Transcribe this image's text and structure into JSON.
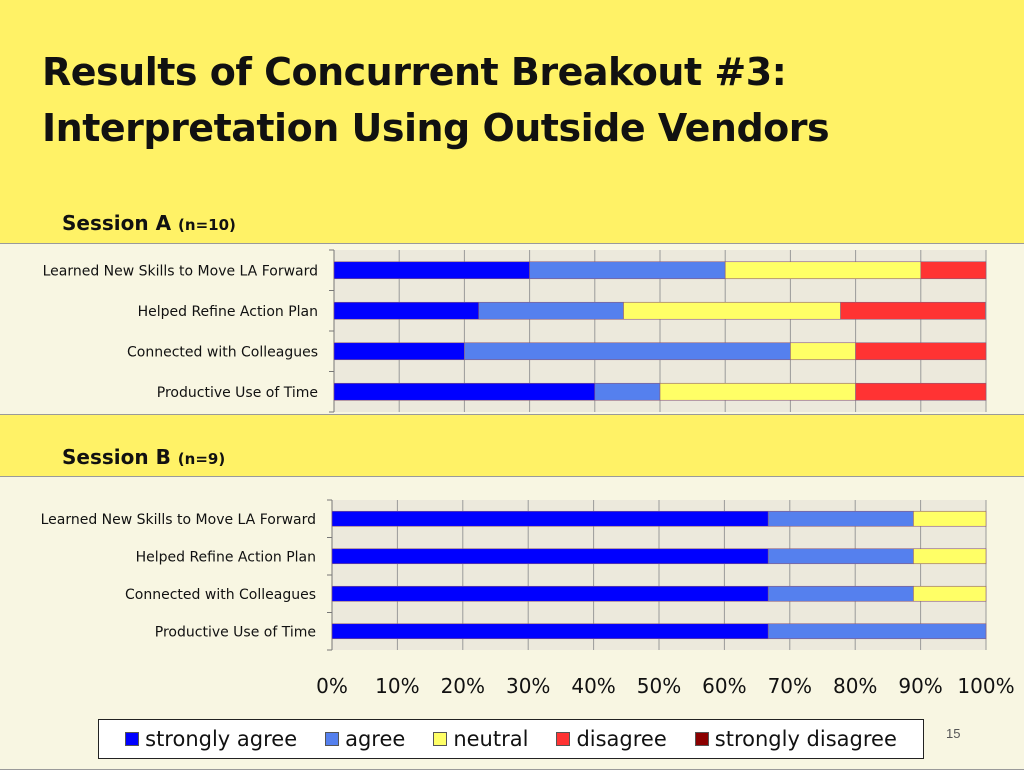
{
  "slide": {
    "title_line1": "Results of Concurrent Breakout #3:",
    "title_line2": "Interpretation Using Outside Vendors",
    "page_number": "15"
  },
  "colors": {
    "strongly_agree": "#0000FF",
    "agree": "#5580EE",
    "neutral": "#FFFF66",
    "disagree": "#FF3333",
    "strongly_disagree": "#8B0000",
    "background": "#FFF266"
  },
  "chart_data": [
    {
      "type": "bar",
      "orientation": "horizontal",
      "stacked": "percent",
      "title": "Session A",
      "subtitle": "(n=10)",
      "categories": [
        "Learned New Skills to Move LA Forward",
        "Helped Refine Action Plan",
        "Connected with Colleagues",
        "Productive Use of Time"
      ],
      "series": [
        {
          "name": "strongly agree",
          "values": [
            30,
            22.2,
            20,
            40
          ]
        },
        {
          "name": "agree",
          "values": [
            30,
            22.2,
            50,
            10
          ]
        },
        {
          "name": "neutral",
          "values": [
            30,
            33.3,
            10,
            30
          ]
        },
        {
          "name": "disagree",
          "values": [
            10,
            22.2,
            20,
            20
          ]
        },
        {
          "name": "strongly disagree",
          "values": [
            0,
            0,
            0,
            0
          ]
        }
      ],
      "xlim": [
        0,
        100
      ],
      "grid": true
    },
    {
      "type": "bar",
      "orientation": "horizontal",
      "stacked": "percent",
      "title": "Session B",
      "subtitle": "(n=9)",
      "categories": [
        "Learned New Skills to Move LA Forward",
        "Helped Refine Action Plan",
        "Connected with Colleagues",
        "Productive Use of Time"
      ],
      "series": [
        {
          "name": "strongly agree",
          "values": [
            66.7,
            66.7,
            66.7,
            66.7
          ]
        },
        {
          "name": "agree",
          "values": [
            22.2,
            22.2,
            22.2,
            33.3
          ]
        },
        {
          "name": "neutral",
          "values": [
            11.1,
            11.1,
            11.1,
            0
          ]
        },
        {
          "name": "disagree",
          "values": [
            0,
            0,
            0,
            0
          ]
        },
        {
          "name": "strongly disagree",
          "values": [
            0,
            0,
            0,
            0
          ]
        }
      ],
      "xlim": [
        0,
        100
      ],
      "xticks": [
        "0%",
        "10%",
        "20%",
        "30%",
        "40%",
        "50%",
        "60%",
        "70%",
        "80%",
        "90%",
        "100%"
      ],
      "grid": true
    }
  ],
  "legend": {
    "position": "bottom",
    "items": [
      {
        "label": "strongly agree",
        "color_key": "strongly_agree"
      },
      {
        "label": "agree",
        "color_key": "agree"
      },
      {
        "label": "neutral",
        "color_key": "neutral"
      },
      {
        "label": "disagree",
        "color_key": "disagree"
      },
      {
        "label": "strongly disagree",
        "color_key": "strongly_disagree"
      }
    ]
  }
}
